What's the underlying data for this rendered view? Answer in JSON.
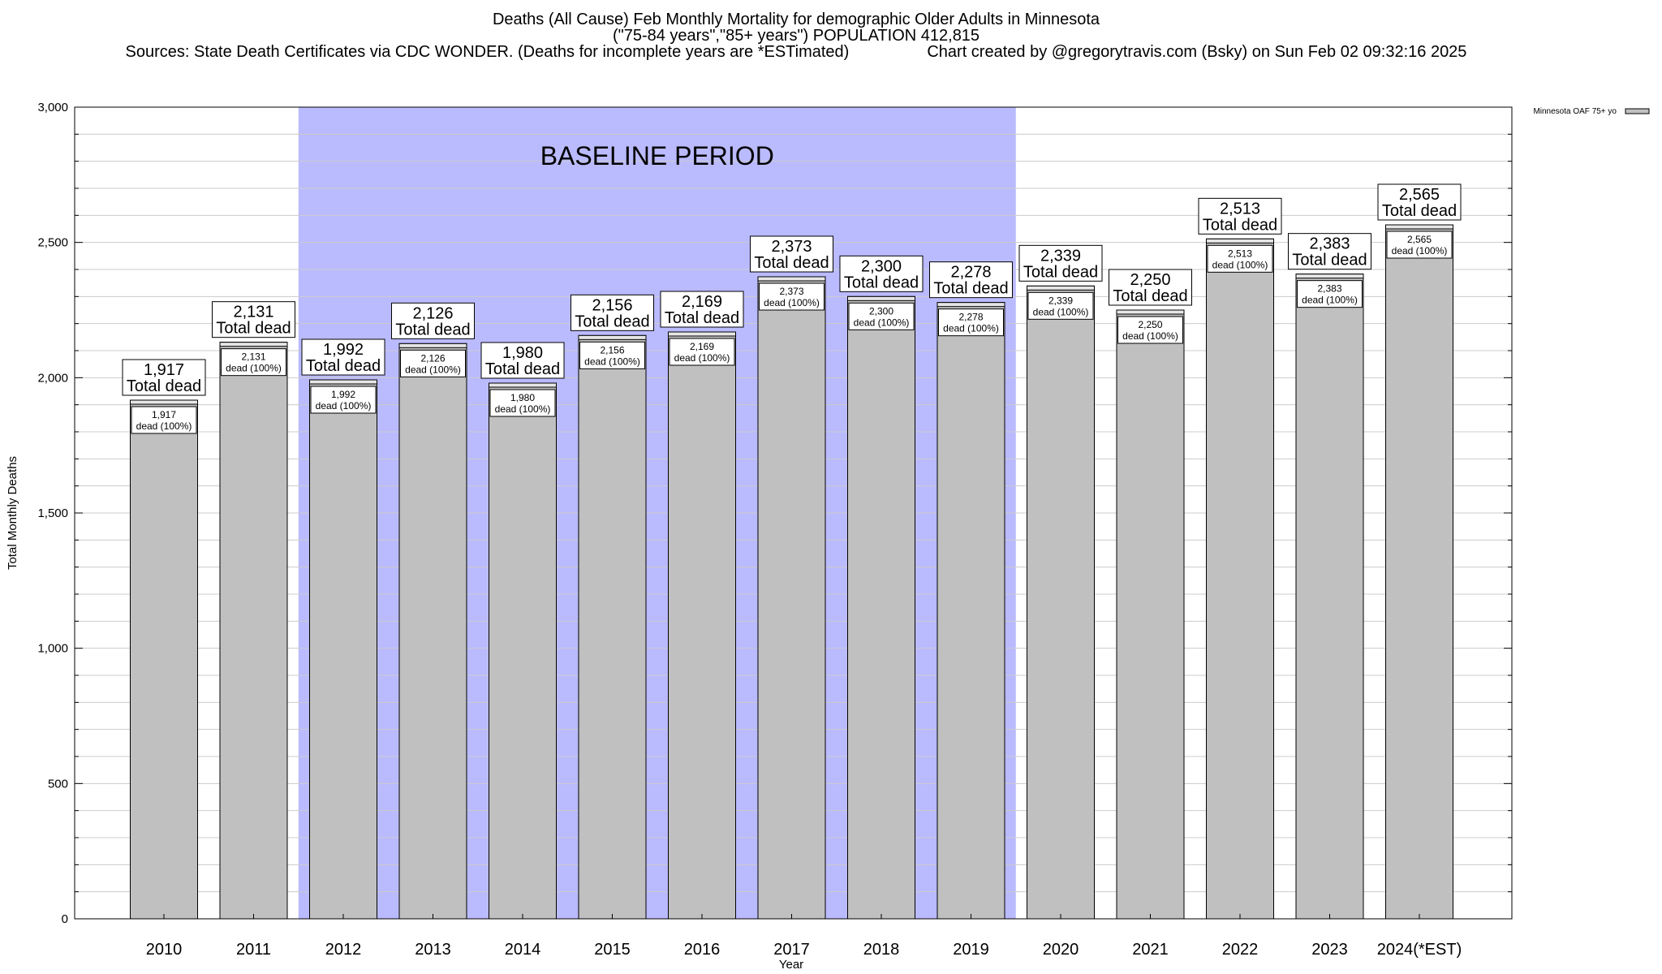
{
  "header": {
    "title_line1": "Deaths (All Cause) Feb Monthly Mortality for demographic Older Adults in Minnesota",
    "title_line2": "(\"75-84 years\",\"85+ years\") POPULATION 412,815",
    "sources": "Sources: State Death Certificates via CDC WONDER. (Deaths for incomplete years are *ESTimated)",
    "credit": "Chart created by @gregorytravis.com (Bsky) on Sun Feb 02 09:32:16 2025"
  },
  "colors": {
    "bar_fill": "#c0c0c0",
    "baseline_band": "#babaff",
    "grid": "#cccccc"
  },
  "chart_data": {
    "type": "bar",
    "title": "Deaths (All Cause) Feb Monthly Mortality for demographic Older Adults in Minnesota",
    "xlabel": "Year",
    "ylabel": "Total Monthly Deaths",
    "ylim": [
      0,
      3000
    ],
    "yticks": [
      0,
      500,
      1000,
      1500,
      2000,
      2500,
      3000
    ],
    "ytick_labels": [
      "0",
      "500",
      "1,000",
      "1,500",
      "2,000",
      "2,500",
      "3,000"
    ],
    "grid": true,
    "categories": [
      "2010",
      "2011",
      "2012",
      "2013",
      "2014",
      "2015",
      "2016",
      "2017",
      "2018",
      "2019",
      "2020",
      "2021",
      "2022",
      "2023",
      "2024(*EST)"
    ],
    "series": [
      {
        "name": "Minnesota OAF 75+ yo",
        "values": [
          1917,
          2131,
          1992,
          2126,
          1980,
          2156,
          2169,
          2373,
          2300,
          2278,
          2339,
          2250,
          2513,
          2383,
          2565
        ]
      }
    ],
    "value_labels": [
      "1,917",
      "2,131",
      "1,992",
      "2,126",
      "1,980",
      "2,156",
      "2,169",
      "2,373",
      "2,300",
      "2,278",
      "2,339",
      "2,250",
      "2,513",
      "2,383",
      "2,565"
    ],
    "total_label": "Total dead",
    "inner_label": "dead (100%)",
    "baseline": {
      "label": "BASELINE PERIOD",
      "start": "2012",
      "end": "2019"
    },
    "legend": {
      "label": "Minnesota OAF 75+ yo",
      "placement": "top-right"
    }
  }
}
